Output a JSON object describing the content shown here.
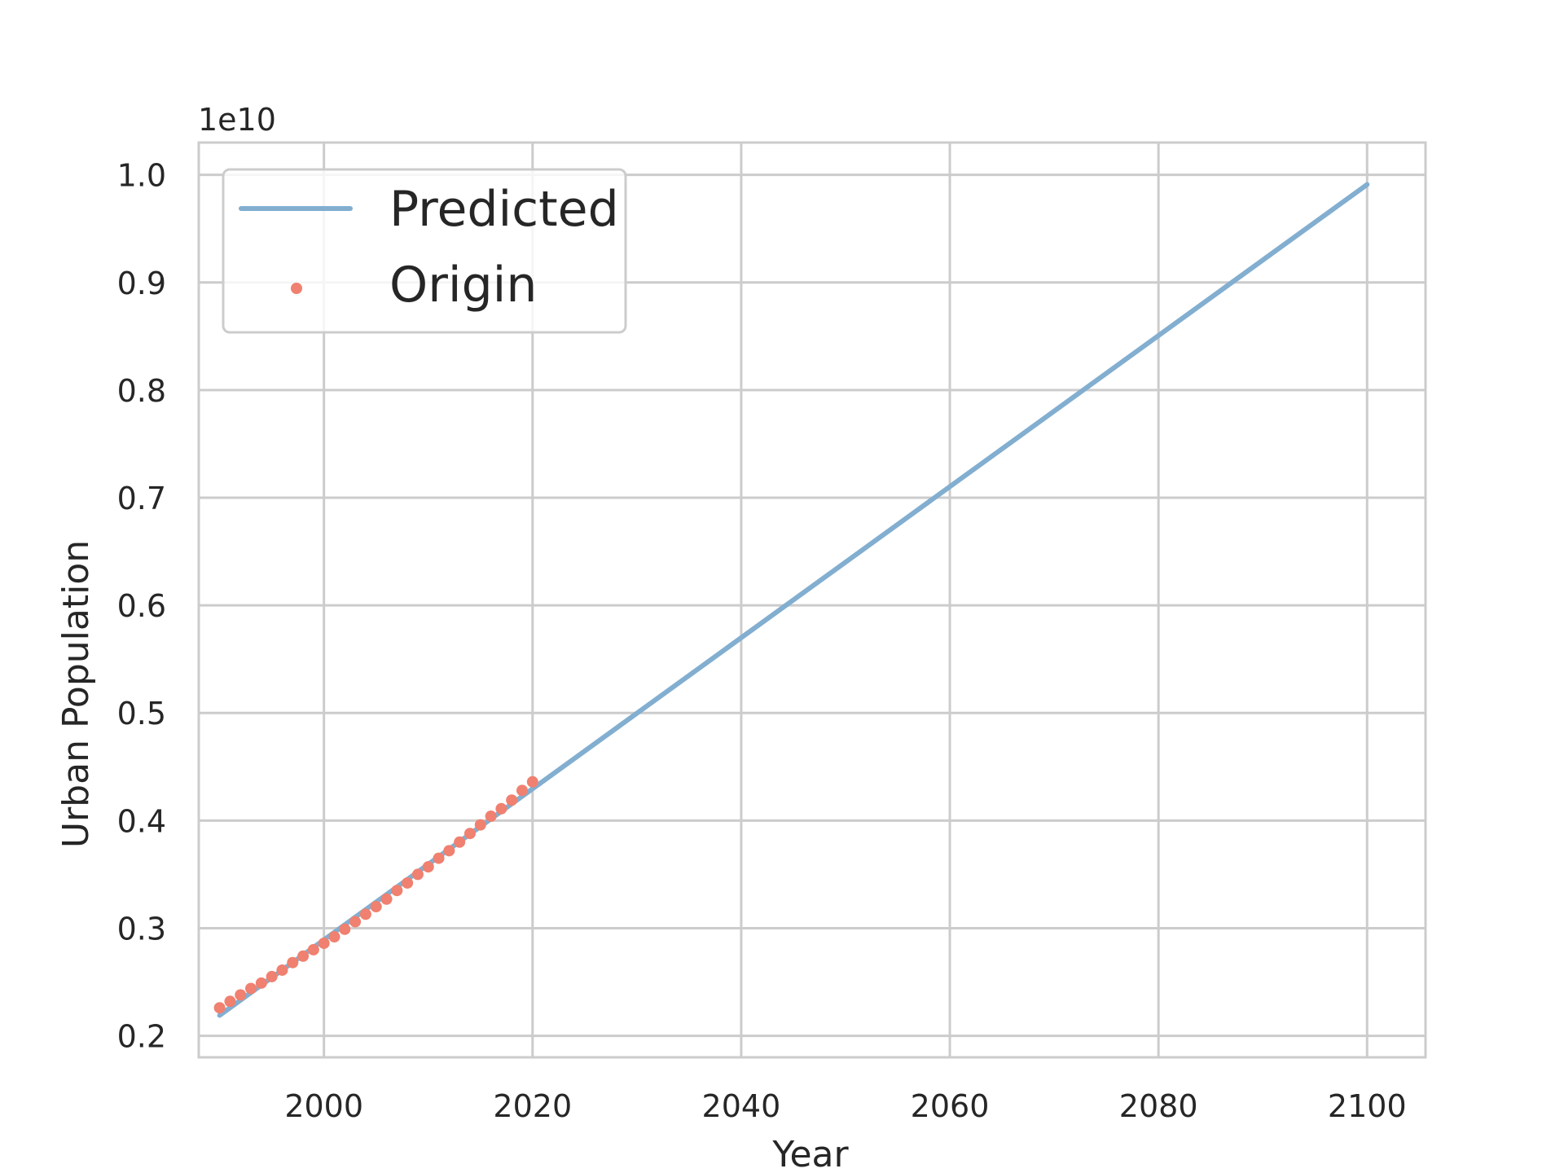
{
  "chart_data": {
    "type": "line",
    "xlabel": "Year",
    "ylabel": "Urban Population",
    "offset_text": "1e10",
    "xlim": [
      1988,
      2105.6
    ],
    "ylim": [
      0.18,
      1.03
    ],
    "x_ticks": [
      2000,
      2020,
      2040,
      2060,
      2080,
      2100
    ],
    "x_tick_labels": [
      "2000",
      "2020",
      "2040",
      "2060",
      "2080",
      "2100"
    ],
    "y_ticks": [
      0.2,
      0.3,
      0.4,
      0.5,
      0.6,
      0.7,
      0.8,
      0.9,
      1.0
    ],
    "y_tick_labels": [
      "0.2",
      "0.3",
      "0.4",
      "0.5",
      "0.6",
      "0.7",
      "0.8",
      "0.9",
      "1.0"
    ],
    "grid": true,
    "legend_position": "top-left",
    "series": [
      {
        "name": "Predicted",
        "kind": "line",
        "color": "#82aed0",
        "x": [
          1990,
          2100
        ],
        "y": [
          0.219,
          0.991
        ]
      },
      {
        "name": "Origin",
        "kind": "scatter",
        "color": "#f08070",
        "x": [
          1990,
          1991,
          1992,
          1993,
          1994,
          1995,
          1996,
          1997,
          1998,
          1999,
          2000,
          2001,
          2002,
          2003,
          2004,
          2005,
          2006,
          2007,
          2008,
          2009,
          2010,
          2011,
          2012,
          2013,
          2014,
          2015,
          2016,
          2017,
          2018,
          2019,
          2020
        ],
        "y": [
          0.226,
          0.232,
          0.238,
          0.244,
          0.249,
          0.255,
          0.261,
          0.268,
          0.274,
          0.28,
          0.286,
          0.292,
          0.299,
          0.306,
          0.313,
          0.32,
          0.327,
          0.335,
          0.342,
          0.35,
          0.357,
          0.365,
          0.372,
          0.38,
          0.388,
          0.396,
          0.404,
          0.411,
          0.419,
          0.428,
          0.436
        ]
      }
    ]
  }
}
